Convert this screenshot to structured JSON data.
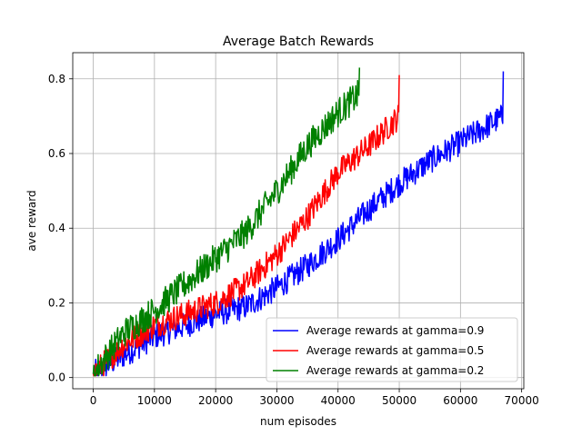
{
  "chart_data": {
    "type": "line",
    "title": "Average Batch Rewards",
    "xlabel": "num episodes",
    "ylabel": "ave reward",
    "xlim": [
      -3350,
      70350
    ],
    "ylim": [
      -0.03,
      0.87
    ],
    "xticks": [
      0,
      10000,
      20000,
      30000,
      40000,
      50000,
      60000,
      70000
    ],
    "yticks": [
      0.0,
      0.2,
      0.4,
      0.6,
      0.8
    ],
    "xtick_labels": [
      "0",
      "10000",
      "20000",
      "30000",
      "40000",
      "50000",
      "60000",
      "70000"
    ],
    "ytick_labels": [
      "0.0",
      "0.2",
      "0.4",
      "0.6",
      "0.8"
    ],
    "grid": true,
    "legend_position": "lower-right",
    "series": [
      {
        "name": "Average rewards at gamma=0.9",
        "color": "#0000ff",
        "x_end": 67000,
        "points": [
          [
            0,
            0.01
          ],
          [
            5000,
            0.06
          ],
          [
            10000,
            0.11
          ],
          [
            15000,
            0.14
          ],
          [
            20000,
            0.17
          ],
          [
            25000,
            0.19
          ],
          [
            30000,
            0.24
          ],
          [
            35000,
            0.3
          ],
          [
            40000,
            0.37
          ],
          [
            45000,
            0.45
          ],
          [
            50000,
            0.52
          ],
          [
            55000,
            0.58
          ],
          [
            60000,
            0.63
          ],
          [
            65000,
            0.68
          ],
          [
            67000,
            0.7
          ]
        ],
        "noise": 0.035,
        "final": 0.82
      },
      {
        "name": "Average rewards at gamma=0.5",
        "color": "#ff0000",
        "x_end": 50000,
        "points": [
          [
            0,
            0.01
          ],
          [
            5000,
            0.09
          ],
          [
            10000,
            0.14
          ],
          [
            15000,
            0.17
          ],
          [
            20000,
            0.2
          ],
          [
            25000,
            0.25
          ],
          [
            30000,
            0.33
          ],
          [
            35000,
            0.43
          ],
          [
            40000,
            0.55
          ],
          [
            45000,
            0.62
          ],
          [
            50000,
            0.7
          ]
        ],
        "noise": 0.035,
        "final": 0.81
      },
      {
        "name": "Average rewards at gamma=0.2",
        "color": "#008000",
        "x_end": 43500,
        "points": [
          [
            0,
            0.01
          ],
          [
            5000,
            0.12
          ],
          [
            10000,
            0.18
          ],
          [
            15000,
            0.25
          ],
          [
            20000,
            0.32
          ],
          [
            25000,
            0.39
          ],
          [
            30000,
            0.5
          ],
          [
            35000,
            0.62
          ],
          [
            40000,
            0.71
          ],
          [
            43500,
            0.76
          ]
        ],
        "noise": 0.04,
        "final": 0.83
      }
    ]
  }
}
